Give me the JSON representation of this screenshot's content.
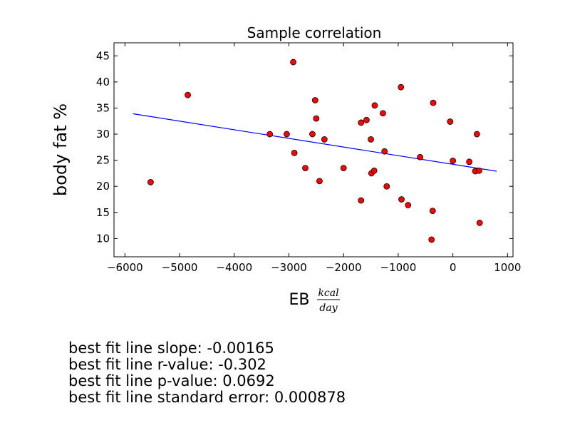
{
  "chart_data": {
    "type": "scatter",
    "title": "Sample correlation",
    "xlabel": "EB",
    "xlabel_fraction": {
      "numerator": "kcal",
      "denominator": "day"
    },
    "ylabel": "body fat %",
    "xlim": [
      -6200,
      1100
    ],
    "ylim": [
      6.5,
      47.5
    ],
    "xticks": [
      -6000,
      -5000,
      -4000,
      -3000,
      -2000,
      -1000,
      0,
      1000
    ],
    "yticks": [
      10,
      15,
      20,
      25,
      30,
      35,
      40,
      45
    ],
    "grid": false,
    "legend": "none",
    "marker_color": "#ff0000",
    "line_color": "#0000ff",
    "points": [
      {
        "x": -5530,
        "y": 20.8
      },
      {
        "x": -4850,
        "y": 37.5
      },
      {
        "x": -3350,
        "y": 30.0
      },
      {
        "x": -3040,
        "y": 30.0
      },
      {
        "x": -2920,
        "y": 43.8
      },
      {
        "x": -2900,
        "y": 26.4
      },
      {
        "x": -2700,
        "y": 23.5
      },
      {
        "x": -2570,
        "y": 30.0
      },
      {
        "x": -2520,
        "y": 36.5
      },
      {
        "x": -2500,
        "y": 33.0
      },
      {
        "x": -2440,
        "y": 21.0
      },
      {
        "x": -2350,
        "y": 29.0
      },
      {
        "x": -2000,
        "y": 23.5
      },
      {
        "x": -1680,
        "y": 32.2
      },
      {
        "x": -1680,
        "y": 17.3
      },
      {
        "x": -1580,
        "y": 32.7
      },
      {
        "x": -1500,
        "y": 29.0
      },
      {
        "x": -1490,
        "y": 22.5
      },
      {
        "x": -1440,
        "y": 23.0
      },
      {
        "x": -1430,
        "y": 35.5
      },
      {
        "x": -1280,
        "y": 34.0
      },
      {
        "x": -1250,
        "y": 26.7
      },
      {
        "x": -1210,
        "y": 20.0
      },
      {
        "x": -950,
        "y": 39.0
      },
      {
        "x": -940,
        "y": 17.5
      },
      {
        "x": -820,
        "y": 16.4
      },
      {
        "x": -600,
        "y": 25.6
      },
      {
        "x": -390,
        "y": 9.8
      },
      {
        "x": -370,
        "y": 15.3
      },
      {
        "x": -360,
        "y": 36.0
      },
      {
        "x": -50,
        "y": 32.4
      },
      {
        "x": 0,
        "y": 24.9
      },
      {
        "x": 300,
        "y": 24.7
      },
      {
        "x": 410,
        "y": 22.9
      },
      {
        "x": 440,
        "y": 30.0
      },
      {
        "x": 480,
        "y": 23.0
      },
      {
        "x": 490,
        "y": 13.0
      }
    ],
    "fit_line": {
      "x": [
        -5850,
        800
      ],
      "y": [
        33.9,
        22.9
      ]
    }
  },
  "stats": {
    "slope": "best fit line slope: -0.00165",
    "r_value": "best fit line r-value: -0.302",
    "p_value": "best fit line p-value: 0.0692",
    "std_err": "best fit line standard error: 0.000878"
  }
}
